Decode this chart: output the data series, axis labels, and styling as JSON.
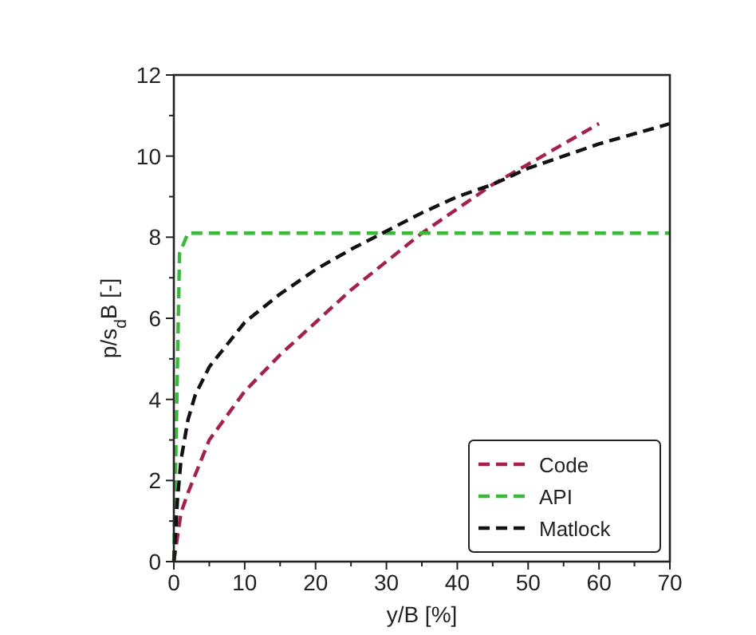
{
  "chart_data": {
    "type": "line",
    "xlabel": "y/B [%]",
    "ylabel": "p/s$_{d}$B [-]",
    "xlim": [
      0,
      70
    ],
    "ylim": [
      0,
      12
    ],
    "xticks": [
      0,
      {
        "value": 5,
        "label": null
      },
      10,
      {
        "value": 15,
        "label": null
      },
      20,
      {
        "value": 25,
        "label": null
      },
      30,
      {
        "value": 35,
        "label": null
      },
      40,
      {
        "value": 45,
        "label": null
      },
      50,
      {
        "value": 55,
        "label": null
      },
      60,
      {
        "value": 65,
        "label": null
      },
      70
    ],
    "yticks": [
      0,
      {
        "value": 1,
        "label": null
      },
      2,
      {
        "value": 3,
        "label": null
      },
      4,
      {
        "value": 5,
        "label": null
      },
      6,
      {
        "value": 7,
        "label": null
      },
      8,
      {
        "value": 9,
        "label": null
      },
      10,
      {
        "value": 11,
        "label": null
      },
      12
    ],
    "grid": false,
    "legend": "bottom right",
    "line_style": "dashed",
    "marker": "none",
    "series": [
      {
        "name": "Code",
        "color": "#a3204f",
        "x": [
          0,
          1,
          2,
          5,
          10,
          15,
          20,
          25,
          30,
          35,
          40,
          45,
          50,
          55,
          60
        ],
        "values": [
          0,
          1.2,
          1.7,
          3,
          4.2,
          5.1,
          5.9,
          6.7,
          7.4,
          8.1,
          8.7,
          9.3,
          9.8,
          10.3,
          10.8
        ]
      },
      {
        "name": "API",
        "color": "#3cb83c",
        "x": [
          0,
          0.8,
          2,
          70
        ],
        "values": [
          0,
          7.6,
          8.1,
          8.1
        ]
      },
      {
        "name": "Matlock",
        "color": "#111111",
        "x": [
          0,
          0.5,
          1,
          2,
          3,
          5,
          10,
          15,
          20,
          25,
          30,
          35,
          40,
          45,
          50,
          55,
          60,
          65,
          70
        ],
        "values": [
          0,
          1.5,
          2.5,
          3.5,
          4.1,
          4.8,
          5.9,
          6.6,
          7.2,
          7.7,
          8.15,
          8.6,
          9,
          9.3,
          9.7,
          10,
          10.3,
          10.55,
          10.8
        ]
      }
    ]
  }
}
